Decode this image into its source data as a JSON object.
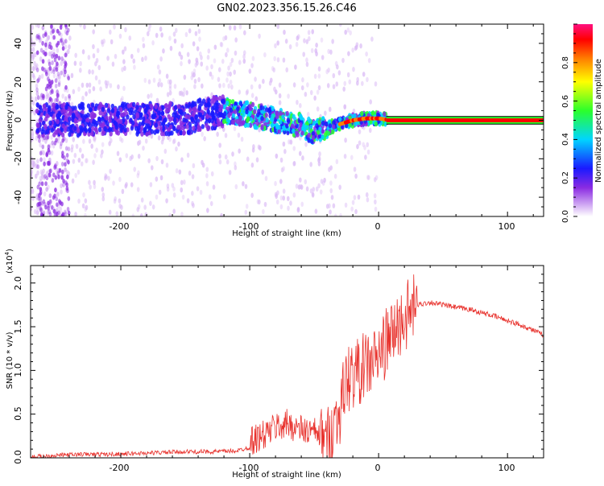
{
  "title": "GN02.2023.356.15.26.C46",
  "colors": {
    "snr_line": "#e8322d",
    "colormap": [
      "#ffffff",
      "#d9b8f5",
      "#8a2be2",
      "#1a1aff",
      "#00d5ff",
      "#2bff2b",
      "#ffff00",
      "#ff7f00",
      "#ff0000",
      "#ff1080"
    ]
  },
  "chart_data": [
    {
      "type": "heatmap",
      "xlabel": "Height of straight line (km)",
      "ylabel": "Frequency (Hz)",
      "xlim": [
        -270,
        128
      ],
      "ylim": [
        -50,
        50
      ],
      "xticks": [
        -200,
        -100,
        0,
        100
      ],
      "yticks": [
        -40,
        -20,
        0,
        20,
        40
      ],
      "colorbar": {
        "label": "Normalized spectral amplitude",
        "range": [
          0,
          1
        ],
        "ticks": [
          "0.0",
          "0.2",
          "0.4",
          "0.6",
          "0.8"
        ]
      },
      "band_centerline": [
        [
          -270,
          0
        ],
        [
          -150,
          1
        ],
        [
          -120,
          5
        ],
        [
          -100,
          3
        ],
        [
          -80,
          0
        ],
        [
          -60,
          -3
        ],
        [
          -50,
          -6
        ],
        [
          -40,
          -4
        ],
        [
          -30,
          -2
        ],
        [
          -20,
          0
        ],
        [
          -10,
          1
        ],
        [
          0,
          1
        ],
        [
          10,
          0
        ],
        [
          128,
          0
        ]
      ]
    },
    {
      "type": "line",
      "xlabel": "Height of straight line (km)",
      "ylabel": "SNR (10 * v/v)",
      "y_multiplier": "(x10^4)",
      "xlim": [
        -270,
        128
      ],
      "ylim": [
        0,
        2.2
      ],
      "xticks": [
        -200,
        -100,
        0,
        100
      ],
      "yticks": [
        0.0,
        0.5,
        1.0,
        1.5,
        2.0
      ],
      "series": [
        {
          "x": [
            -270,
            -250,
            -230,
            -210,
            -190,
            -170,
            -150,
            -130,
            -110,
            -100,
            -90,
            -80,
            -70,
            -60,
            -50,
            -40,
            -30,
            -25,
            -20,
            -15,
            -10,
            -5,
            0,
            5,
            10,
            20,
            30,
            40,
            50,
            60,
            70,
            80,
            90,
            100,
            110,
            120,
            128
          ],
          "y": [
            0.01,
            0.03,
            0.04,
            0.04,
            0.05,
            0.06,
            0.07,
            0.07,
            0.08,
            0.12,
            0.18,
            0.28,
            0.32,
            0.25,
            0.22,
            0.18,
            0.55,
            0.9,
            0.95,
            1.0,
            1.05,
            1.1,
            1.15,
            1.3,
            1.4,
            1.6,
            1.75,
            1.78,
            1.75,
            1.72,
            1.7,
            1.66,
            1.62,
            1.57,
            1.52,
            1.46,
            1.4
          ]
        }
      ]
    }
  ],
  "labels": {
    "xticks": [
      "-200",
      "-100",
      "0",
      "100"
    ],
    "top_yticks": [
      "40",
      "20",
      "0",
      "-20",
      "-40"
    ],
    "bottom_yticks": [
      "0.0",
      "0.5",
      "1.0",
      "1.5",
      "2.0"
    ],
    "bottom_multiplier_base": "(x10",
    "bottom_multiplier_exp": "4",
    "bottom_multiplier_end": ")"
  }
}
